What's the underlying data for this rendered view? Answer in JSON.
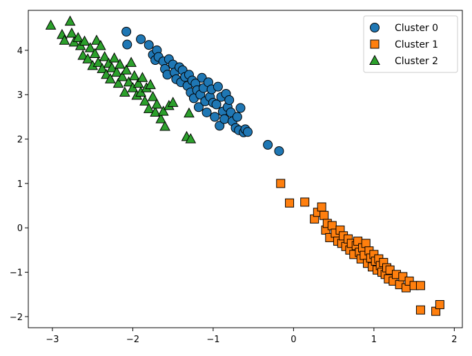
{
  "chart_data": {
    "type": "scatter",
    "xlim": [
      -3.3,
      2.1
    ],
    "ylim": [
      -2.25,
      4.9
    ],
    "xticks": [
      -3,
      -2,
      -1,
      0,
      1,
      2
    ],
    "yticks": [
      -2,
      -1,
      0,
      1,
      2,
      3,
      4
    ],
    "xtick_labels": [
      "−3",
      "−2",
      "−1",
      "0",
      "1",
      "2"
    ],
    "ytick_labels": [
      "−2",
      "−1",
      "0",
      "1",
      "2",
      "3",
      "4"
    ],
    "grid": false,
    "legend_position": "top-right",
    "series": [
      {
        "name": "Cluster 0",
        "marker": "circle",
        "color": "#1f77b4",
        "points": [
          [
            -2.08,
            4.42
          ],
          [
            -2.07,
            4.13
          ],
          [
            -1.9,
            4.25
          ],
          [
            -1.8,
            4.12
          ],
          [
            -1.75,
            3.9
          ],
          [
            -1.72,
            3.78
          ],
          [
            -1.7,
            4.0
          ],
          [
            -1.68,
            3.85
          ],
          [
            -1.62,
            3.75
          ],
          [
            -1.6,
            3.58
          ],
          [
            -1.57,
            3.45
          ],
          [
            -1.55,
            3.8
          ],
          [
            -1.5,
            3.68
          ],
          [
            -1.48,
            3.5
          ],
          [
            -1.46,
            3.35
          ],
          [
            -1.42,
            3.62
          ],
          [
            -1.4,
            3.28
          ],
          [
            -1.38,
            3.55
          ],
          [
            -1.35,
            3.4
          ],
          [
            -1.32,
            3.2
          ],
          [
            -1.3,
            3.45
          ],
          [
            -1.28,
            3.05
          ],
          [
            -1.26,
            3.32
          ],
          [
            -1.24,
            2.92
          ],
          [
            -1.22,
            3.25
          ],
          [
            -1.2,
            3.1
          ],
          [
            -1.18,
            2.72
          ],
          [
            -1.16,
            3.0
          ],
          [
            -1.14,
            3.38
          ],
          [
            -1.12,
            3.15
          ],
          [
            -1.1,
            2.85
          ],
          [
            -1.08,
            2.6
          ],
          [
            -1.06,
            3.28
          ],
          [
            -1.04,
            2.95
          ],
          [
            -1.02,
            3.12
          ],
          [
            -1.0,
            2.82
          ],
          [
            -0.98,
            2.5
          ],
          [
            -0.96,
            2.78
          ],
          [
            -0.94,
            3.18
          ],
          [
            -0.92,
            2.3
          ],
          [
            -0.9,
            2.95
          ],
          [
            -0.88,
            2.62
          ],
          [
            -0.86,
            2.45
          ],
          [
            -0.84,
            3.02
          ],
          [
            -0.82,
            2.72
          ],
          [
            -0.8,
            2.88
          ],
          [
            -0.78,
            2.6
          ],
          [
            -0.76,
            2.4
          ],
          [
            -0.72,
            2.25
          ],
          [
            -0.7,
            2.5
          ],
          [
            -0.68,
            2.2
          ],
          [
            -0.66,
            2.7
          ],
          [
            -0.62,
            2.15
          ],
          [
            -0.6,
            2.22
          ],
          [
            -0.57,
            2.16
          ],
          [
            -0.32,
            1.87
          ],
          [
            -0.18,
            1.73
          ]
        ]
      },
      {
        "name": "Cluster 1",
        "marker": "square",
        "color": "#ff7f0e",
        "points": [
          [
            -0.16,
            1.0
          ],
          [
            -0.05,
            0.56
          ],
          [
            0.14,
            0.58
          ],
          [
            0.26,
            0.2
          ],
          [
            0.3,
            0.35
          ],
          [
            0.35,
            0.47
          ],
          [
            0.38,
            0.28
          ],
          [
            0.4,
            -0.05
          ],
          [
            0.42,
            0.1
          ],
          [
            0.45,
            -0.22
          ],
          [
            0.48,
            0.05
          ],
          [
            0.52,
            -0.12
          ],
          [
            0.55,
            -0.3
          ],
          [
            0.58,
            -0.05
          ],
          [
            0.6,
            -0.35
          ],
          [
            0.62,
            -0.18
          ],
          [
            0.65,
            -0.42
          ],
          [
            0.68,
            -0.25
          ],
          [
            0.7,
            -0.5
          ],
          [
            0.72,
            -0.35
          ],
          [
            0.75,
            -0.6
          ],
          [
            0.78,
            -0.4
          ],
          [
            0.8,
            -0.3
          ],
          [
            0.82,
            -0.55
          ],
          [
            0.84,
            -0.7
          ],
          [
            0.86,
            -0.45
          ],
          [
            0.88,
            -0.62
          ],
          [
            0.9,
            -0.35
          ],
          [
            0.92,
            -0.8
          ],
          [
            0.94,
            -0.52
          ],
          [
            0.96,
            -0.68
          ],
          [
            0.98,
            -0.88
          ],
          [
            1.0,
            -0.6
          ],
          [
            1.02,
            -0.75
          ],
          [
            1.04,
            -0.95
          ],
          [
            1.06,
            -0.7
          ],
          [
            1.08,
            -0.85
          ],
          [
            1.1,
            -1.0
          ],
          [
            1.12,
            -0.78
          ],
          [
            1.14,
            -1.05
          ],
          [
            1.16,
            -0.9
          ],
          [
            1.18,
            -1.15
          ],
          [
            1.2,
            -0.95
          ],
          [
            1.24,
            -1.2
          ],
          [
            1.28,
            -1.05
          ],
          [
            1.32,
            -1.28
          ],
          [
            1.36,
            -1.1
          ],
          [
            1.4,
            -1.35
          ],
          [
            1.44,
            -1.2
          ],
          [
            1.5,
            -1.3
          ],
          [
            1.58,
            -1.3
          ],
          [
            1.58,
            -1.85
          ],
          [
            1.77,
            -1.88
          ],
          [
            1.82,
            -1.73
          ]
        ]
      },
      {
        "name": "Cluster 2",
        "marker": "triangle",
        "color": "#2ca02c",
        "points": [
          [
            -3.02,
            4.56
          ],
          [
            -2.88,
            4.35
          ],
          [
            -2.85,
            4.22
          ],
          [
            -2.78,
            4.65
          ],
          [
            -2.76,
            4.38
          ],
          [
            -2.73,
            4.18
          ],
          [
            -2.68,
            4.28
          ],
          [
            -2.65,
            4.1
          ],
          [
            -2.62,
            3.88
          ],
          [
            -2.6,
            4.2
          ],
          [
            -2.56,
            3.8
          ],
          [
            -2.53,
            4.05
          ],
          [
            -2.5,
            3.65
          ],
          [
            -2.47,
            3.92
          ],
          [
            -2.45,
            4.22
          ],
          [
            -2.43,
            3.72
          ],
          [
            -2.4,
            4.1
          ],
          [
            -2.38,
            3.58
          ],
          [
            -2.35,
            3.85
          ],
          [
            -2.33,
            3.45
          ],
          [
            -2.3,
            3.7
          ],
          [
            -2.28,
            3.35
          ],
          [
            -2.26,
            3.6
          ],
          [
            -2.23,
            3.82
          ],
          [
            -2.2,
            3.5
          ],
          [
            -2.18,
            3.25
          ],
          [
            -2.16,
            3.68
          ],
          [
            -2.13,
            3.4
          ],
          [
            -2.1,
            3.05
          ],
          [
            -2.08,
            3.55
          ],
          [
            -2.05,
            3.28
          ],
          [
            -2.02,
            3.72
          ],
          [
            -2.0,
            3.15
          ],
          [
            -1.98,
            3.42
          ],
          [
            -1.95,
            2.98
          ],
          [
            -1.93,
            3.25
          ],
          [
            -1.9,
            3.05
          ],
          [
            -1.88,
            3.38
          ],
          [
            -1.85,
            2.85
          ],
          [
            -1.83,
            3.15
          ],
          [
            -1.8,
            2.68
          ],
          [
            -1.78,
            3.22
          ],
          [
            -1.75,
            2.95
          ],
          [
            -1.72,
            2.6
          ],
          [
            -1.7,
            2.78
          ],
          [
            -1.65,
            2.45
          ],
          [
            -1.62,
            2.62
          ],
          [
            -1.6,
            2.28
          ],
          [
            -1.55,
            2.75
          ],
          [
            -1.5,
            2.82
          ],
          [
            -1.33,
            2.05
          ],
          [
            -1.3,
            2.58
          ],
          [
            -1.28,
            2.0
          ]
        ]
      }
    ]
  }
}
